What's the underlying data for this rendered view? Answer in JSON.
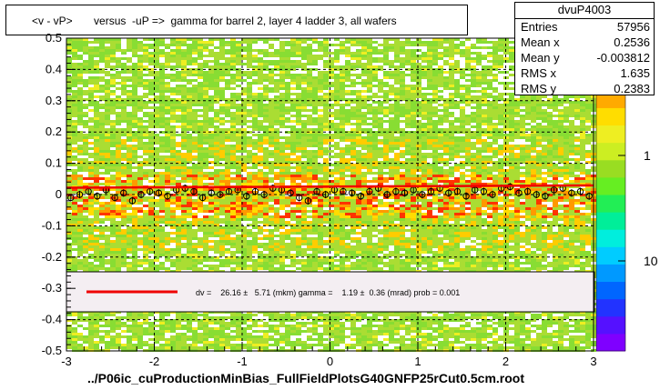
{
  "chart_data": {
    "type": "heatmap",
    "title": "<v - vP>       versus  -uP =>  gamma for barrel 2, layer 4 ladder 3, all wafers",
    "xlabel": "../P06ic_cuProductionMinBias_FullFieldPlotsG40GNFP25rCut0.5cm.root",
    "ylabel": "",
    "xlim": [
      -3,
      3
    ],
    "ylim": [
      -0.5,
      0.5
    ],
    "x_ticks": [
      "-3",
      "-2",
      "-1",
      "0",
      "1",
      "2",
      "3"
    ],
    "y_ticks": [
      "-0.5",
      "-0.4",
      "-0.3",
      "-0.2",
      "-0.1",
      "0",
      "0.1",
      "0.2",
      "0.3",
      "0.4",
      "0.5"
    ],
    "z_scale": "log",
    "z_ticks": [
      "1",
      "10"
    ],
    "grid": true,
    "stats": {
      "name": "dvuP4003",
      "rows": [
        {
          "label": "Entries",
          "value": "57956"
        },
        {
          "label": "Mean x",
          "value": "0.2536"
        },
        {
          "label": "Mean y",
          "value": "-0.003812"
        },
        {
          "label": "RMS x",
          "value": "1.635"
        },
        {
          "label": "RMS y",
          "value": "0.2383"
        }
      ]
    },
    "fit_legend": "dv =    26.16 ±   5.71 (mkm) gamma =    1.19 ±  0.36 (mrad) prob = 0.001",
    "profile_points": {
      "x": [
        -2.95,
        -2.85,
        -2.75,
        -2.65,
        -2.55,
        -2.45,
        -2.35,
        -2.25,
        -2.15,
        -2.05,
        -1.95,
        -1.85,
        -1.75,
        -1.65,
        -1.55,
        -1.45,
        -1.35,
        -1.25,
        -1.15,
        -1.05,
        -0.95,
        -0.85,
        -0.75,
        -0.65,
        -0.55,
        -0.45,
        -0.35,
        -0.25,
        -0.15,
        -0.05,
        0.05,
        0.15,
        0.25,
        0.35,
        0.45,
        0.55,
        0.65,
        0.75,
        0.85,
        0.95,
        1.05,
        1.15,
        1.25,
        1.35,
        1.45,
        1.55,
        1.65,
        1.75,
        1.85,
        1.95,
        2.05,
        2.15,
        2.25,
        2.35,
        2.45,
        2.55,
        2.65,
        2.75,
        2.85,
        2.95
      ],
      "y": [
        -0.01,
        0.0,
        0.01,
        -0.005,
        0.015,
        -0.01,
        0.005,
        -0.02,
        0.0,
        0.01,
        0.005,
        -0.005,
        0.015,
        0.02,
        0.01,
        -0.01,
        0.005,
        0.0,
        0.01,
        0.015,
        -0.005,
        0.01,
        0.0,
        0.02,
        0.015,
        0.005,
        -0.01,
        -0.02,
        0.01,
        0.0,
        0.015,
        0.01,
        0.005,
        -0.005,
        0.01,
        0.02,
        0.0,
        0.01,
        0.005,
        0.015,
        0.0,
        0.01,
        0.02,
        0.005,
        0.01,
        -0.005,
        0.015,
        0.01,
        0.0,
        0.02,
        0.025,
        0.005,
        0.01,
        0.0,
        -0.005,
        0.015,
        0.02,
        0.005,
        0.01,
        -0.005
      ]
    },
    "fit_line": {
      "x": [
        -3,
        3
      ],
      "y": [
        0.0219,
        0.0291
      ]
    }
  }
}
